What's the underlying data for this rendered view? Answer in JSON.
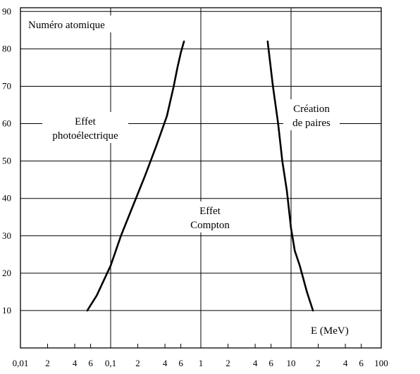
{
  "chart_data": {
    "type": "line",
    "title": "Numéro atomique",
    "xlabel": "E (MeV)",
    "ylabel": "Numéro atomique",
    "x_scale": "log",
    "xlim": [
      0.01,
      100
    ],
    "ylim": [
      0,
      90
    ],
    "grid": true,
    "x_tick_labels": [
      "0,01",
      "2",
      "4",
      "6",
      "0,1",
      "2",
      "4",
      "6",
      "1",
      "2",
      "4",
      "6",
      "10",
      "2",
      "4",
      "6",
      "100"
    ],
    "y_tick_labels": [
      "10",
      "20",
      "30",
      "40",
      "50",
      "60",
      "70",
      "80",
      "90"
    ],
    "series": [
      {
        "x": [
          0.055,
          0.07,
          0.1,
          0.13,
          0.17,
          0.24,
          0.32,
          0.42,
          0.5,
          0.55,
          0.6,
          0.65
        ],
        "y": [
          10,
          14,
          22,
          30,
          37,
          46,
          54,
          62,
          70,
          75,
          79,
          82
        ]
      },
      {
        "x": [
          5.5,
          6.3,
          7.2,
          8.0,
          9.0,
          10.0,
          11.0,
          12.5,
          15.0,
          17.5
        ],
        "y": [
          82,
          70,
          60,
          50,
          42,
          32,
          26,
          22,
          15,
          10
        ]
      }
    ],
    "annotations": [
      {
        "lines": [
          "Effet",
          "photoélectrique"
        ]
      },
      {
        "lines": [
          "Effet",
          "Compton"
        ]
      },
      {
        "lines": [
          "Création",
          "de paires"
        ]
      }
    ]
  }
}
